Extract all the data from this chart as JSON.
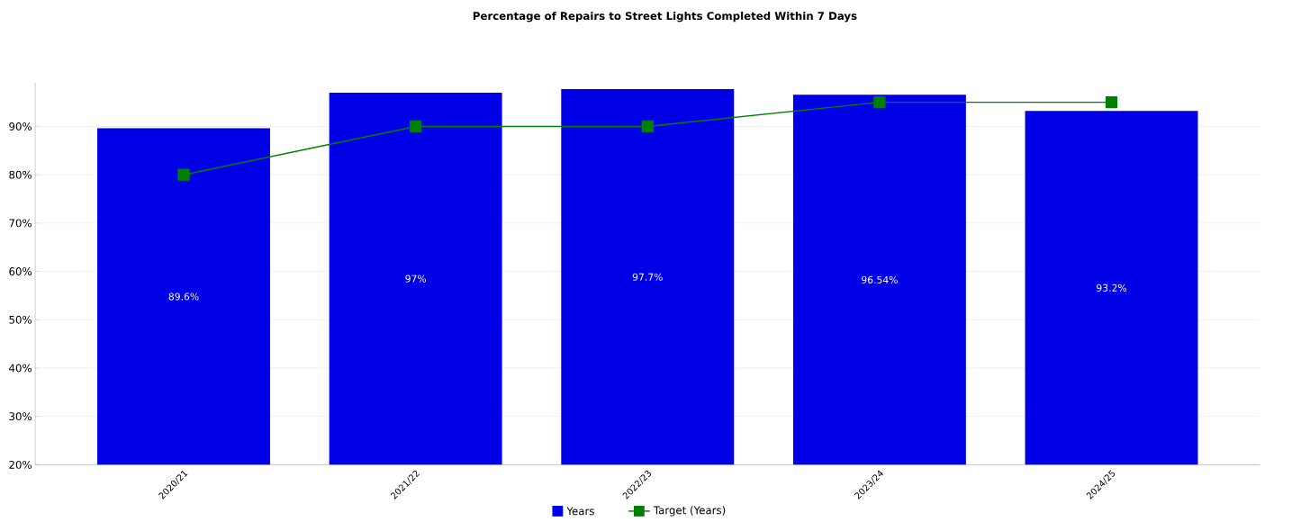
{
  "chart_data": {
    "type": "bar",
    "title": "Percentage of Repairs to Street Lights Completed Within 7 Days",
    "categories": [
      "2020/21",
      "2021/22",
      "2022/23",
      "2023/24",
      "2024/25"
    ],
    "series": [
      {
        "name": "Years",
        "color": "#0000e6",
        "values": [
          89.6,
          97,
          97.7,
          96.54,
          93.2
        ],
        "value_labels": [
          "89.6%",
          "97%",
          "97.7%",
          "96.54%",
          "93.2%"
        ]
      },
      {
        "name": "Target (Years)",
        "type": "line",
        "color": "#008000",
        "marker": "square",
        "values": [
          80,
          90,
          90,
          95,
          95
        ]
      }
    ],
    "ylim": [
      20,
      99
    ],
    "yticks": [
      {
        "value": 20,
        "label": "20%"
      },
      {
        "value": 30,
        "label": "30%"
      },
      {
        "value": 40,
        "label": "40%"
      },
      {
        "value": 50,
        "label": "50%"
      },
      {
        "value": 60,
        "label": "60%"
      },
      {
        "value": 70,
        "label": "70%"
      },
      {
        "value": 80,
        "label": "80%"
      },
      {
        "value": 90,
        "label": "90%"
      }
    ],
    "grid": "y",
    "legend": "bottom"
  }
}
